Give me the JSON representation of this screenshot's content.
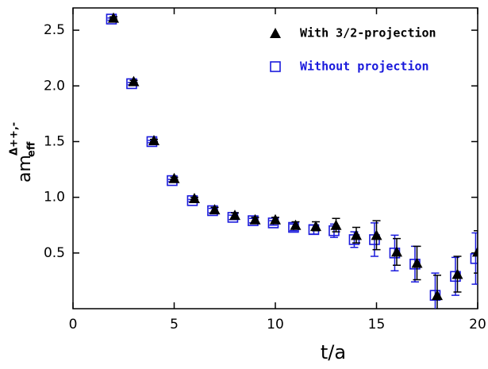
{
  "chart_data": {
    "type": "scatter",
    "xlabel": "t/a",
    "ylabel": "am",
    "ylabel_sub": "eff",
    "ylabel_sup": "Δ++,-",
    "xlim": [
      0,
      20
    ],
    "xticks": [
      0,
      5,
      10,
      15,
      20
    ],
    "ylim": [
      0,
      2.7
    ],
    "yticks": [
      0.5,
      {
        "value": 1,
        "label": "1.0"
      },
      1.5,
      {
        "value": 2,
        "label": "2.0"
      },
      2.5
    ],
    "legend": "upper right",
    "series": [
      {
        "name": "With 3/2-projection",
        "color": "#000000",
        "marker": "triangle",
        "x": [
          2,
          3,
          4,
          5,
          6,
          7,
          8,
          9,
          10,
          11,
          12,
          13,
          14,
          15,
          16,
          17,
          18,
          19,
          20
        ],
        "values": [
          2.61,
          2.04,
          1.51,
          1.17,
          0.99,
          0.89,
          0.84,
          0.8,
          0.8,
          0.75,
          0.74,
          0.75,
          0.66,
          0.66,
          0.51,
          0.41,
          0.12,
          0.31,
          0.51
        ],
        "errors": [
          0.01,
          0.01,
          0.01,
          0.01,
          0.01,
          0.02,
          0.02,
          0.02,
          0.02,
          0.03,
          0.04,
          0.06,
          0.07,
          0.13,
          0.12,
          0.15,
          0.18,
          0.16,
          0.19
        ]
      },
      {
        "name": "Without projection",
        "color": "#1a1adc",
        "marker": "square",
        "x": [
          1.9,
          2.9,
          3.9,
          4.9,
          5.9,
          6.9,
          7.9,
          8.9,
          9.9,
          10.9,
          11.9,
          12.9,
          13.9,
          14.9,
          15.9,
          16.9,
          17.9,
          18.9,
          19.9
        ],
        "values": [
          2.6,
          2.02,
          1.5,
          1.15,
          0.97,
          0.88,
          0.82,
          0.79,
          0.77,
          0.73,
          0.71,
          0.7,
          0.62,
          0.62,
          0.5,
          0.4,
          0.12,
          0.29,
          0.45
        ],
        "errors": [
          0.01,
          0.01,
          0.01,
          0.01,
          0.01,
          0.02,
          0.02,
          0.02,
          0.02,
          0.03,
          0.04,
          0.06,
          0.07,
          0.15,
          0.16,
          0.16,
          0.2,
          0.17,
          0.23
        ]
      }
    ]
  }
}
